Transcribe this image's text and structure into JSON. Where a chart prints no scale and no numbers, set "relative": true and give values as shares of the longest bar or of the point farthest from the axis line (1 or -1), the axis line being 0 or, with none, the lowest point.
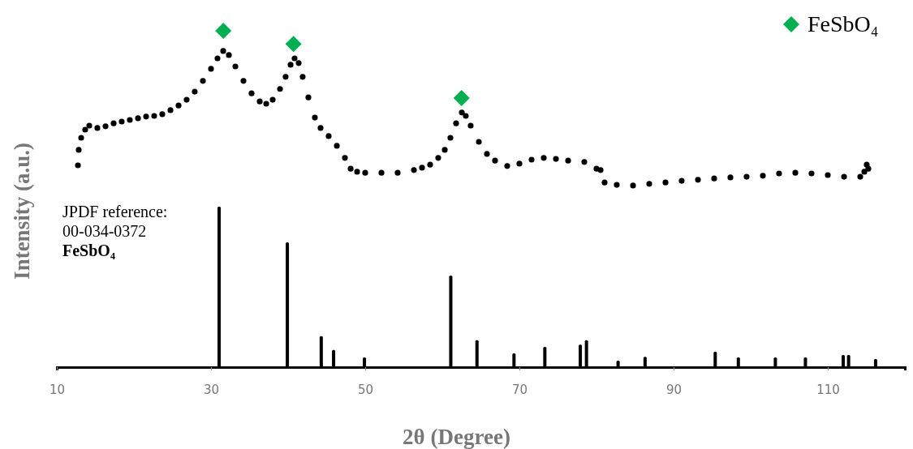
{
  "chart_data": {
    "type": "scatter",
    "relative": true,
    "xlabel": "2θ (Degree)",
    "ylabel": "Intensity (a.u.)",
    "xlim": [
      10,
      120
    ],
    "xticks": [
      10,
      30,
      50,
      70,
      90,
      110
    ],
    "legend": "top right",
    "grid": false,
    "annotations": [
      "JPDF reference:",
      "00-034-0372",
      "FeSbO₄"
    ],
    "series": [
      {
        "marker": "circle",
        "color": "#000000",
        "x": [
          12.74,
          12.84,
          13.16,
          13.68,
          14.21,
          15.26,
          16.32,
          17.37,
          18.42,
          19.47,
          20.53,
          21.58,
          22.63,
          23.68,
          24.74,
          25.79,
          26.84,
          27.89,
          28.95,
          30.0,
          30.84,
          31.58,
          32.32,
          33.16,
          34.21,
          35.26,
          36.32,
          37.16,
          38.0,
          38.95,
          39.68,
          40.32,
          40.84,
          41.37,
          41.89,
          42.63,
          43.47,
          44.21,
          45.26,
          46.32,
          47.37,
          48.11,
          48.95,
          50.0,
          52.11,
          54.21,
          56.32,
          57.37,
          58.42,
          59.47,
          60.32,
          61.05,
          61.79,
          62.53,
          63.05,
          63.68,
          64.74,
          65.79,
          66.84,
          68.42,
          70.0,
          71.58,
          73.16,
          74.74,
          76.32,
          78.42,
          80.0,
          80.53,
          81.05,
          82.63,
          84.74,
          86.84,
          88.95,
          91.05,
          93.16,
          95.26,
          97.37,
          99.47,
          101.58,
          103.68,
          105.79,
          107.89,
          110.0,
          112.11,
          114.21,
          114.74,
          115.05,
          115.26
        ],
        "values": [
          0.6,
          0.646,
          0.682,
          0.706,
          0.718,
          0.711,
          0.716,
          0.725,
          0.73,
          0.735,
          0.74,
          0.745,
          0.747,
          0.752,
          0.764,
          0.778,
          0.795,
          0.819,
          0.851,
          0.887,
          0.918,
          0.94,
          0.928,
          0.894,
          0.851,
          0.814,
          0.79,
          0.783,
          0.795,
          0.827,
          0.863,
          0.899,
          0.918,
          0.904,
          0.863,
          0.802,
          0.742,
          0.711,
          0.687,
          0.658,
          0.622,
          0.59,
          0.581,
          0.578,
          0.578,
          0.578,
          0.586,
          0.593,
          0.602,
          0.622,
          0.646,
          0.682,
          0.725,
          0.757,
          0.747,
          0.718,
          0.67,
          0.634,
          0.614,
          0.598,
          0.605,
          0.617,
          0.622,
          0.619,
          0.614,
          0.61,
          0.59,
          0.586,
          0.549,
          0.542,
          0.54,
          0.545,
          0.549,
          0.554,
          0.557,
          0.561,
          0.564,
          0.566,
          0.569,
          0.576,
          0.578,
          0.576,
          0.571,
          0.566,
          0.566,
          0.581,
          0.602,
          0.59
        ]
      },
      {
        "type": "scatter",
        "name": "FeSbO₄",
        "marker": "diamond",
        "color": "#00b050",
        "x": [
          31.6,
          40.7,
          62.5
        ],
        "values": [
          1.0,
          0.961,
          0.8
        ]
      },
      {
        "type": "bar",
        "color": "#000000",
        "x": [
          31.05,
          39.9,
          44.3,
          45.9,
          49.9,
          61.1,
          64.5,
          69.3,
          73.3,
          77.9,
          78.7,
          82.8,
          86.3,
          95.4,
          98.4,
          103.2,
          107.1,
          112.0,
          112.7,
          116.2
        ],
        "values": [
          0.477,
          0.371,
          0.092,
          0.051,
          0.029,
          0.272,
          0.08,
          0.041,
          0.06,
          0.067,
          0.08,
          0.019,
          0.031,
          0.046,
          0.029,
          0.029,
          0.029,
          0.036,
          0.036,
          0.024
        ]
      }
    ]
  }
}
